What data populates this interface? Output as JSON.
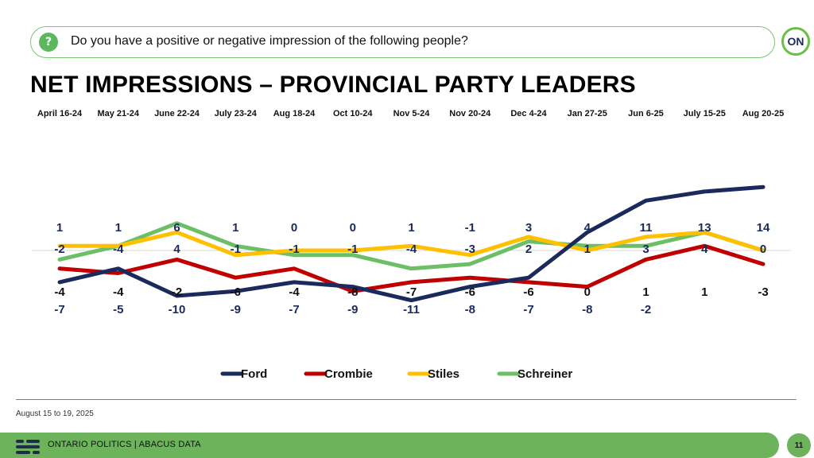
{
  "question": {
    "text": "Do you have a positive or negative impression of the following people?",
    "icon": "question-icon"
  },
  "logo": {
    "text": "ON"
  },
  "title": "NET IMPRESSIONS – PROVINCIAL PARTY LEADERS",
  "chart_data": {
    "type": "line",
    "categories": [
      "April 16-24",
      "May 21-24",
      "June 22-24",
      "July 23-24",
      "Aug 18-24",
      "Oct 10-24",
      "Nov 5-24",
      "Nov 20-24",
      "Dec 4-24",
      "Jan 27-25",
      "Jun 6-25",
      "July 15-25",
      "Aug 20-25"
    ],
    "ylim": [
      -12,
      15
    ],
    "grid": false,
    "legend_position": "bottom",
    "series": [
      {
        "name": "Ford",
        "color": "#1b2a5c",
        "label_color": "#1b2a5c",
        "values": [
          -7,
          -4,
          -10,
          -9,
          -7,
          -8,
          -11,
          -8,
          -6,
          4,
          11,
          13,
          14
        ]
      },
      {
        "name": "Crombie",
        "color": "#c00000",
        "label_color": "#111111",
        "values": [
          -4,
          -5,
          -2,
          -6,
          -4,
          -9,
          -7,
          -6,
          -7,
          -8,
          -2,
          1,
          -3
        ]
      },
      {
        "name": "Stiles",
        "color": "#ffc000",
        "label_color": "#1b2a5c",
        "values": [
          1,
          1,
          4,
          -1,
          0,
          0,
          1,
          -1,
          3,
          0,
          3,
          4,
          0
        ]
      },
      {
        "name": "Schreiner",
        "color": "#6cbf66",
        "label_color": "#1b2a5c",
        "values": [
          -2,
          1,
          6,
          1,
          -1,
          -1,
          -4,
          -3,
          2,
          1,
          1,
          4,
          0
        ]
      }
    ],
    "data_labels": [
      [
        "1",
        "1",
        "6",
        "1",
        "0",
        "0",
        "1",
        "-1",
        "3",
        "4",
        "11",
        "13",
        "14"
      ],
      [
        "-2",
        "-4",
        "4",
        "-1",
        "-1",
        "-1",
        "-4",
        "-3",
        "2",
        "1",
        "3",
        "4",
        "0"
      ],
      [
        "-4",
        "-4",
        "-2",
        "-6",
        "-4",
        "-8",
        "-7",
        "-6",
        "-6",
        "0",
        "1",
        "1",
        "-3"
      ],
      [
        "-7",
        "-5",
        "-10",
        "-9",
        "-7",
        "-9",
        "-11",
        "-8",
        "-7",
        "-8",
        "-2",
        "",
        ""
      ]
    ],
    "data_label_colors": [
      "#1b2a5c",
      "#1b2a5c",
      "#111111",
      "#1b2a5c"
    ]
  },
  "footer": {
    "date_note": "August 15 to 19, 2025",
    "brand": "ONTARIO POLITICS  |  ABACUS DATA",
    "page": "11"
  }
}
